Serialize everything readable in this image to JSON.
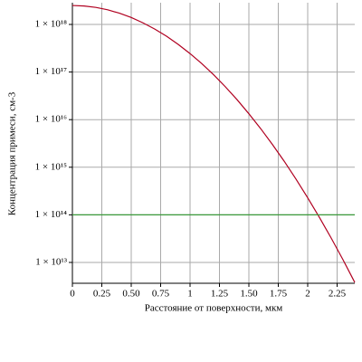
{
  "chart_data": {
    "type": "line",
    "xlabel": "Расстояние от поверхности, мкм",
    "ylabel": "Концентрация примеси, см-3",
    "yscale": "log",
    "grid": true,
    "xlim": [
      0,
      2.4
    ],
    "xticks": [
      0,
      0.25,
      {
        "value": 0.5,
        "label": "0.50"
      },
      0.75,
      1,
      1.25,
      {
        "value": 1.5,
        "label": "1.50"
      },
      1.75,
      2,
      2.25
    ],
    "ylim": [
      3650000000000.0,
      2.86e+18
    ],
    "yticks": [
      {
        "value": 10000000000000.0,
        "label": "1 × 10¹³"
      },
      {
        "value": 100000000000000.0,
        "label": "1 × 10¹⁴"
      },
      {
        "value": 1000000000000000.0,
        "label": "1 × 10¹⁵"
      },
      {
        "value": 1e+16,
        "label": "1 × 10¹⁶"
      },
      {
        "value": 1e+17,
        "label": "1 × 10¹⁷"
      },
      {
        "value": 1e+18,
        "label": "1 × 10¹⁸"
      }
    ],
    "series": [
      {
        "color": "#b00020",
        "x": [
          0,
          0.1,
          0.2,
          0.3,
          0.4,
          0.5,
          0.6,
          0.7,
          0.8,
          0.9,
          1.0,
          1.1,
          1.2,
          1.3,
          1.4,
          1.5,
          1.6,
          1.7,
          1.8,
          1.9,
          2.0,
          2.1,
          2.2,
          2.3,
          2.4
        ],
        "values": [
          2.5e+18,
          2.44e+18,
          2.28e+18,
          2.03e+18,
          1.72e+18,
          1.4e+18,
          1.08e+18,
          8e+17,
          5.65e+17,
          3.8e+17,
          2.44e+17,
          1.5e+17,
          8.79e+16,
          4.91e+16,
          2.62e+16,
          1.33e+16,
          6490000000000000.0,
          3010000000000000.0,
          1340000000000000.0,
          565000000000000.0,
          228000000000000.0,
          87900000000000.0,
          32400000000000.0,
          11400000000000.0,
          3800000000000.0
        ]
      },
      {
        "color": "#3a9a3a",
        "x": [
          0,
          2.4
        ],
        "values": [
          100000000000000.0,
          100000000000000.0
        ]
      }
    ]
  }
}
